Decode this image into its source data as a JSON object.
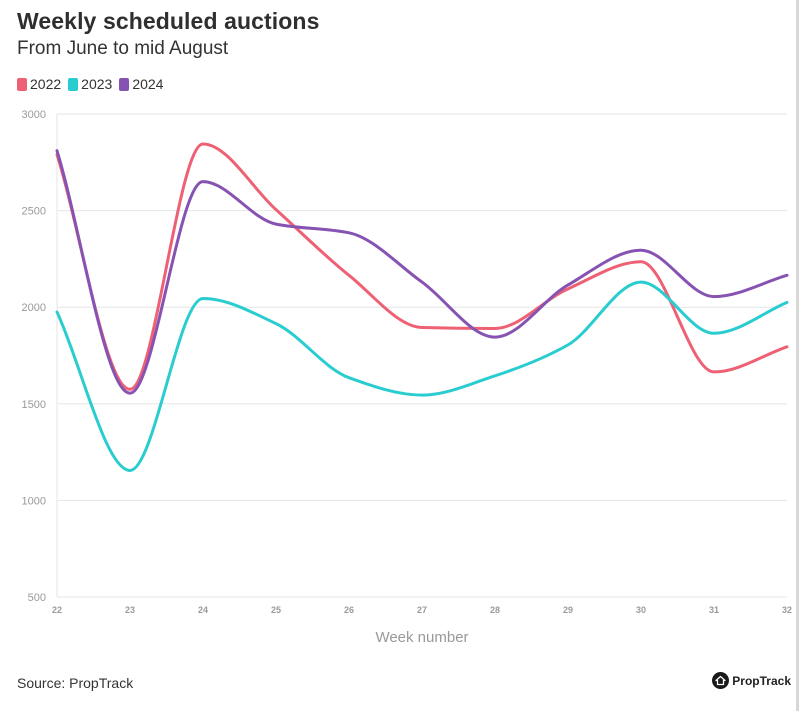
{
  "chart_data": {
    "type": "line",
    "title": "Weekly scheduled auctions",
    "subtitle": "From June to mid August",
    "xlabel": "Week number",
    "ylabel": "",
    "x": [
      22,
      23,
      24,
      25,
      26,
      27,
      28,
      29,
      30,
      31,
      32
    ],
    "ylim": [
      500,
      3000
    ],
    "yticks": [
      500,
      1000,
      1500,
      2000,
      2500,
      3000
    ],
    "grid": true,
    "legend_position": "top-left",
    "series": [
      {
        "name": "2022",
        "color": "#ee6174",
        "values": [
          2790,
          1575,
          2845,
          2505,
          2165,
          1895,
          1890,
          2095,
          2235,
          1665,
          1795
        ]
      },
      {
        "name": "2023",
        "color": "#29cccf",
        "values": [
          1975,
          1155,
          2045,
          1915,
          1635,
          1545,
          1645,
          1805,
          2130,
          1865,
          2025
        ]
      },
      {
        "name": "2024",
        "color": "#8753b3",
        "values": [
          2810,
          1555,
          2650,
          2430,
          2385,
          2130,
          1845,
          2115,
          2295,
          2055,
          2165
        ]
      }
    ]
  },
  "footer": {
    "source": "Source: PropTrack",
    "brand": "PropTrack",
    "brand_icon": "house-icon"
  }
}
